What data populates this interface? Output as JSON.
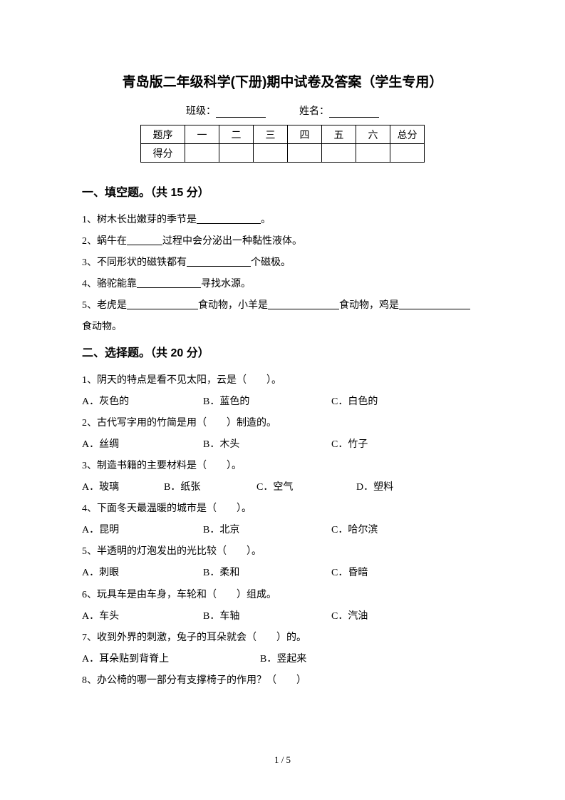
{
  "title": "青岛版二年级科学(下册)期中试卷及答案（学生专用）",
  "info": {
    "class_label": "班级：",
    "name_label": "姓名："
  },
  "score_table": {
    "row1": [
      "题序",
      "一",
      "二",
      "三",
      "四",
      "五",
      "六",
      "总分"
    ],
    "row2_label": "得分"
  },
  "section1": {
    "heading": "一、填空题。（共 15 分）",
    "q1_a": "1、树木长出嫩芽的季节是",
    "q1_b": "。",
    "q2_a": "2、蜗牛在",
    "q2_b": "过程中会分泌出一种黏性液体。",
    "q3_a": "3、不同形状的磁铁都有",
    "q3_b": "个磁极。",
    "q4_a": "4、骆驼能靠",
    "q4_b": "寻找水源。",
    "q5_a": "5、老虎是",
    "q5_b": "食动物，小羊是",
    "q5_c": "食动物，鸡是",
    "q5_d": "食动物。"
  },
  "section2": {
    "heading": "二、选择题。（共 20 分）",
    "q1": "1、阴天的特点是看不见太阳，云是（　　）。",
    "q1_choices": {
      "a": "A．灰色的",
      "b": "B．蓝色的",
      "c": "C．白色的"
    },
    "q2": "2、古代写字用的竹简是用（　　）制造的。",
    "q2_choices": {
      "a": "A．丝绸",
      "b": "B．木头",
      "c": "C．竹子"
    },
    "q3": "3、制造书籍的主要材料是（　　）。",
    "q3_choices": {
      "a": "A．玻璃",
      "b": "B．纸张",
      "c": "C．空气",
      "d": "D．塑料"
    },
    "q4": "4、下面冬天最温暖的城市是（　　）。",
    "q4_choices": {
      "a": "A．昆明",
      "b": "B．北京",
      "c": "C．哈尔滨"
    },
    "q5": "5、半透明的灯泡发出的光比较（　　）。",
    "q5_choices": {
      "a": "A．刺眼",
      "b": "B．柔和",
      "c": "C．昏暗"
    },
    "q6": "6、玩具车是由车身，车轮和（　　）组成。",
    "q6_choices": {
      "a": "A．车头",
      "b": "B．车轴",
      "c": "C．汽油"
    },
    "q7": "7、收到外界的刺激，兔子的耳朵就会（　　）的。",
    "q7_choices": {
      "a": "A．耳朵贴到背脊上",
      "b": "B．竖起来"
    },
    "q8": "8、办公椅的哪一部分有支撑椅子的作用？（　　）"
  },
  "footer": "1 / 5",
  "blank_widths": {
    "q1": 90,
    "q2": 50,
    "q3": 90,
    "q4": 90,
    "q5": 100
  },
  "choice_widths": {
    "col3_a": 170,
    "col3_b": 180,
    "col4_a": 115,
    "col4_b": 130,
    "col4_c": 140,
    "col2_a": 250
  }
}
